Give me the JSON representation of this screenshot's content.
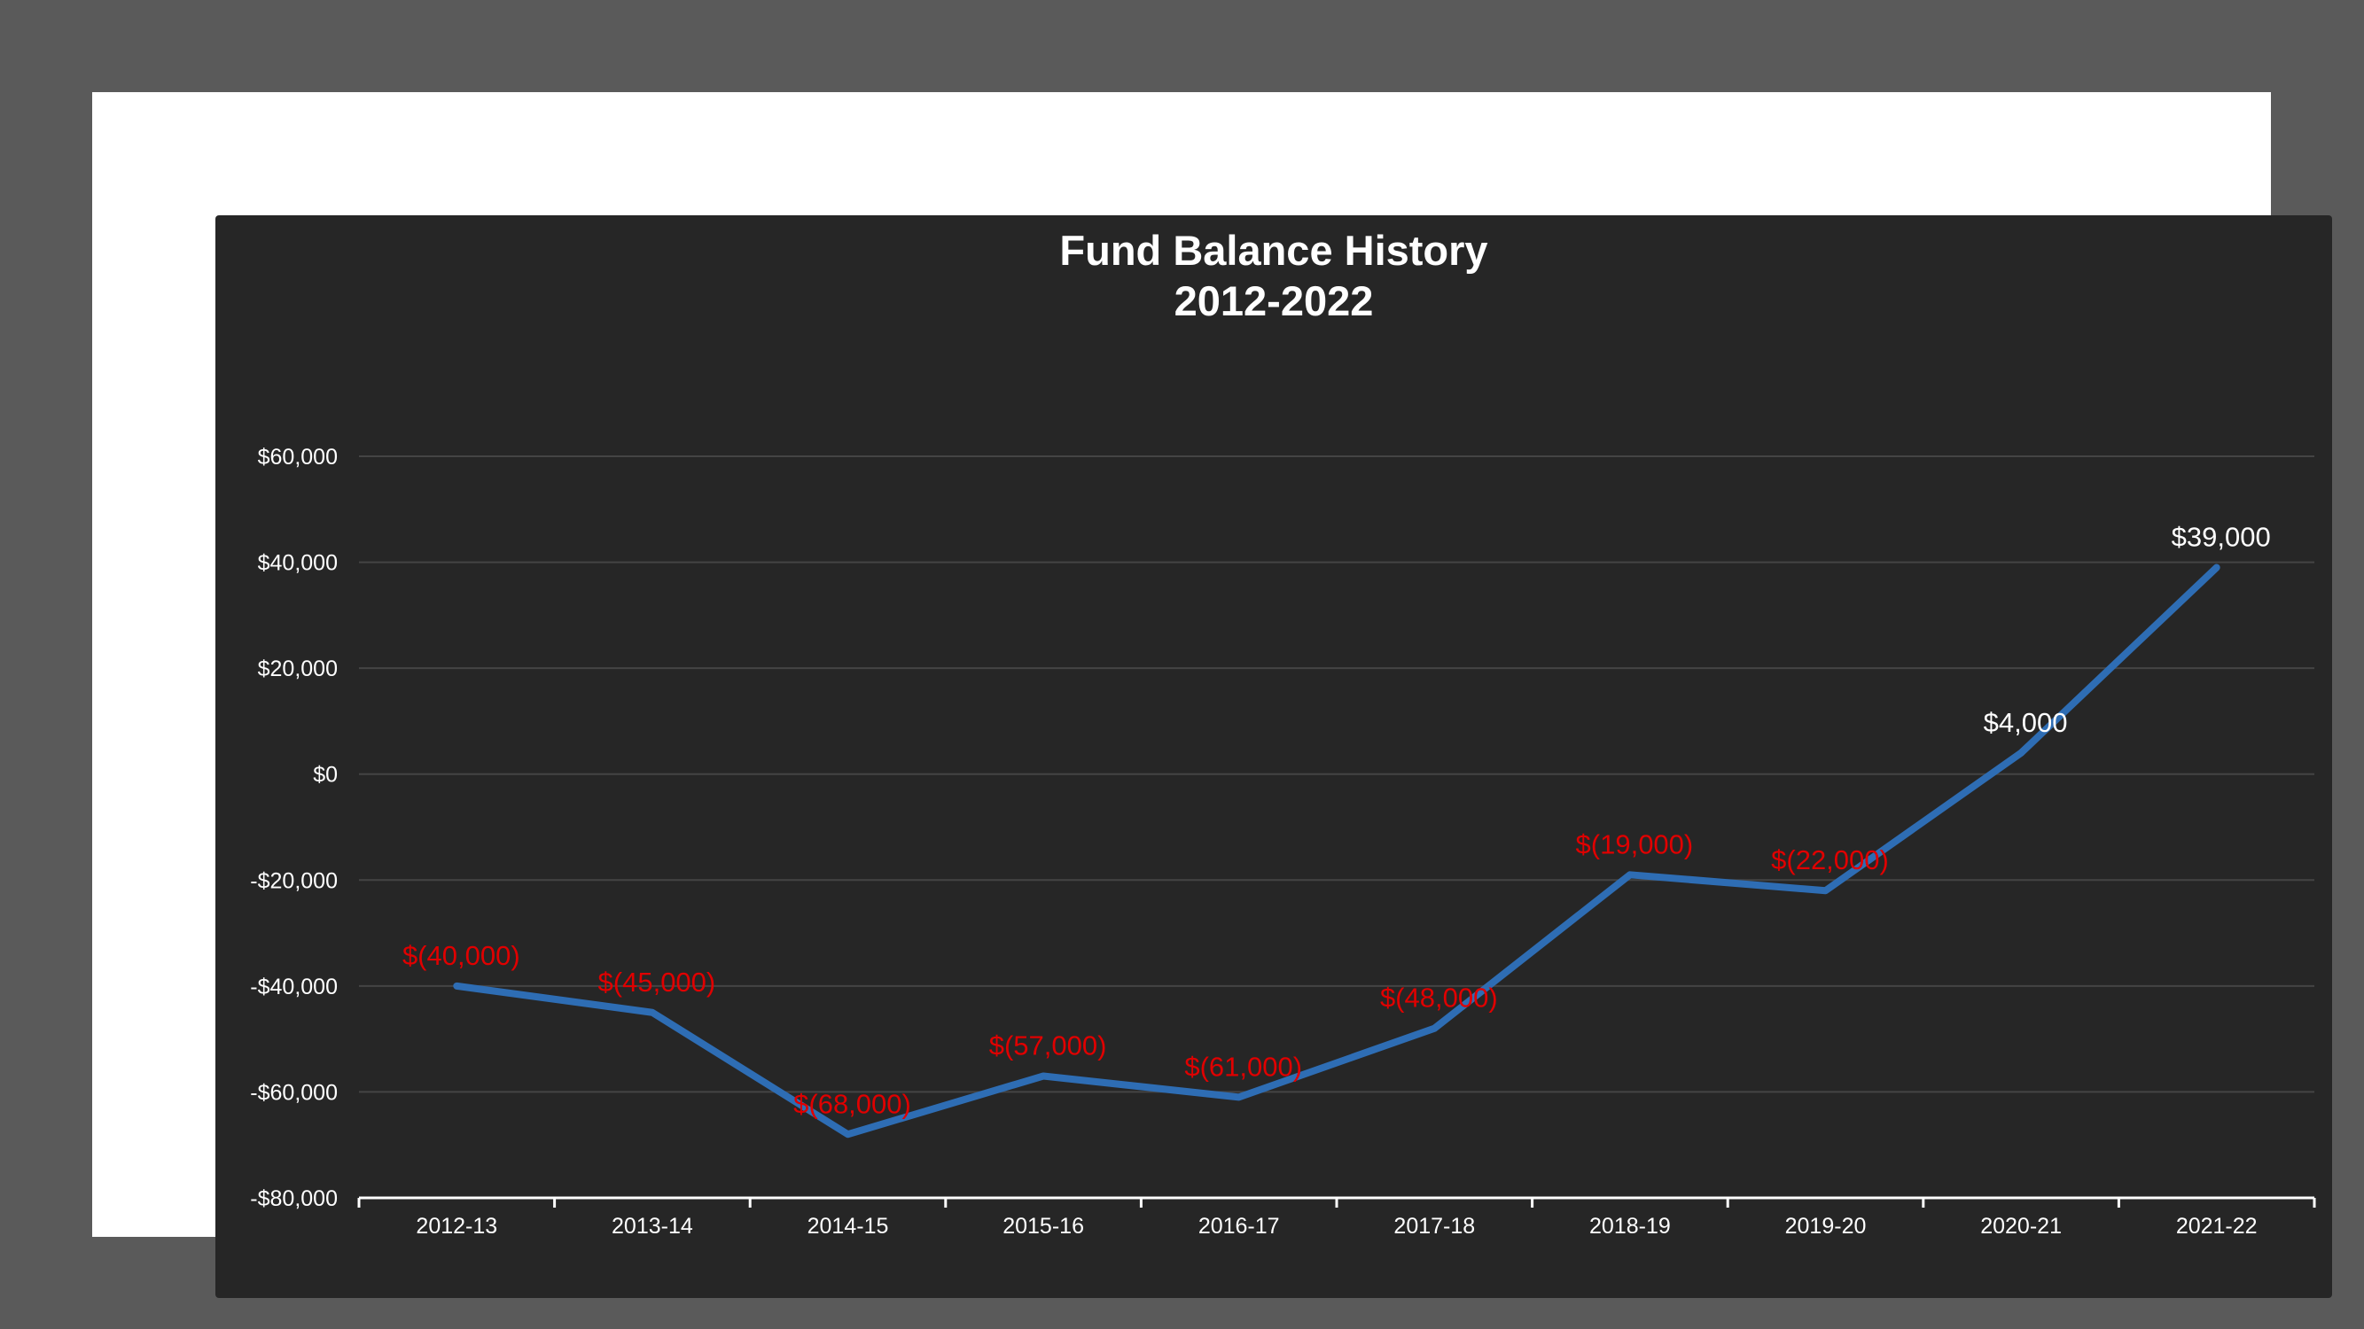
{
  "chart_data": {
    "type": "line",
    "title_line1": "Fund Balance History",
    "title_line2": "2012-2022",
    "xlabel": "",
    "ylabel": "",
    "categories": [
      "2012-13",
      "2013-14",
      "2014-15",
      "2015-16",
      "2016-17",
      "2017-18",
      "2018-19",
      "2019-20",
      "2020-21",
      "2021-22"
    ],
    "series": [
      {
        "values": [
          -40000,
          -45000,
          -68000,
          -57000,
          -61000,
          -48000,
          -19000,
          -22000,
          4000,
          39000
        ]
      }
    ],
    "data_labels": [
      "$(40,000)",
      "$(45,000)",
      "$(68,000)",
      "$(57,000)",
      "$(61,000)",
      "$(48,000)",
      "$(19,000)",
      "$(22,000)",
      "$4,000",
      "$39,000"
    ],
    "ylim": [
      -80000,
      60000
    ],
    "yticks": [
      60000,
      40000,
      20000,
      0,
      -20000,
      -40000,
      -60000,
      -80000
    ],
    "ytick_labels": [
      "$60,000",
      "$40,000",
      "$20,000",
      "$0",
      "-$20,000",
      "-$40,000",
      "-$60,000",
      "-$80,000"
    ],
    "grid": true,
    "legend": "none",
    "colors": {
      "line": "#2e6db4",
      "negative_label": "#e00000",
      "positive_label": "#ffffff",
      "background": "#262626",
      "grid": "#444444",
      "text": "#ffffff"
    }
  }
}
